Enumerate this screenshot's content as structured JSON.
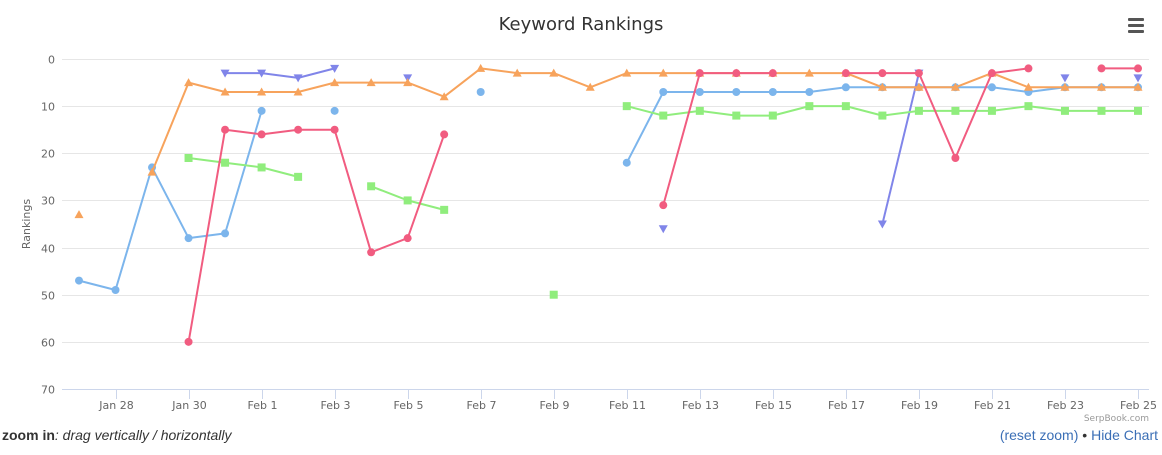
{
  "chart_data": {
    "type": "line",
    "title": "Keyword Rankings",
    "ylabel": "Rankings",
    "xlabel": "",
    "y_reversed": true,
    "ylim": [
      0,
      70
    ],
    "y_ticks": [
      0,
      10,
      20,
      30,
      40,
      50,
      60,
      70
    ],
    "x_range": [
      "2015-01-27",
      "2015-02-25"
    ],
    "x_ticks": [
      {
        "date": "2015-01-28",
        "label": "Jan 28"
      },
      {
        "date": "2015-01-30",
        "label": "Jan 30"
      },
      {
        "date": "2015-02-01",
        "label": "Feb 1"
      },
      {
        "date": "2015-02-03",
        "label": "Feb 3"
      },
      {
        "date": "2015-02-05",
        "label": "Feb 5"
      },
      {
        "date": "2015-02-07",
        "label": "Feb 7"
      },
      {
        "date": "2015-02-09",
        "label": "Feb 9"
      },
      {
        "date": "2015-02-11",
        "label": "Feb 11"
      },
      {
        "date": "2015-02-13",
        "label": "Feb 13"
      },
      {
        "date": "2015-02-15",
        "label": "Feb 15"
      },
      {
        "date": "2015-02-17",
        "label": "Feb 17"
      },
      {
        "date": "2015-02-19",
        "label": "Feb 19"
      },
      {
        "date": "2015-02-21",
        "label": "Feb 21"
      },
      {
        "date": "2015-02-23",
        "label": "Feb 23"
      },
      {
        "date": "2015-02-25",
        "label": "Feb 25"
      }
    ],
    "grid": true,
    "series": [
      {
        "color": "#7cb5ec",
        "marker": "circle",
        "points": [
          [
            "2015-01-27",
            47
          ],
          [
            "2015-01-28",
            49
          ],
          [
            "2015-01-29",
            23
          ],
          [
            "2015-01-30",
            38
          ],
          [
            "2015-01-31",
            37
          ],
          [
            "2015-02-01",
            11
          ],
          [
            "2015-02-02",
            null
          ],
          [
            "2015-02-03",
            11
          ],
          [
            "2015-02-04",
            null
          ],
          [
            "2015-02-07",
            7
          ],
          [
            "2015-02-08",
            null
          ],
          [
            "2015-02-11",
            22
          ],
          [
            "2015-02-12",
            7
          ],
          [
            "2015-02-13",
            7
          ],
          [
            "2015-02-14",
            7
          ],
          [
            "2015-02-15",
            7
          ],
          [
            "2015-02-16",
            7
          ],
          [
            "2015-02-17",
            6
          ],
          [
            "2015-02-18",
            6
          ],
          [
            "2015-02-19",
            6
          ],
          [
            "2015-02-20",
            6
          ],
          [
            "2015-02-21",
            6
          ],
          [
            "2015-02-22",
            7
          ],
          [
            "2015-02-23",
            6
          ],
          [
            "2015-02-24",
            6
          ],
          [
            "2015-02-25",
            6
          ]
        ]
      },
      {
        "color": "#8085e9",
        "marker": "triangle-down",
        "points": [
          [
            "2015-01-31",
            3
          ],
          [
            "2015-02-01",
            3
          ],
          [
            "2015-02-02",
            4
          ],
          [
            "2015-02-03",
            2
          ],
          [
            "2015-02-04",
            null
          ],
          [
            "2015-02-05",
            4
          ],
          [
            "2015-02-06",
            null
          ],
          [
            "2015-02-12",
            36
          ],
          [
            "2015-02-13",
            null
          ],
          [
            "2015-02-18",
            35
          ],
          [
            "2015-02-19",
            3
          ],
          [
            "2015-02-20",
            null
          ],
          [
            "2015-02-23",
            4
          ],
          [
            "2015-02-24",
            null
          ],
          [
            "2015-02-25",
            4
          ]
        ]
      },
      {
        "color": "#f7a35c",
        "marker": "triangle",
        "points": [
          [
            "2015-01-27",
            33
          ],
          [
            "2015-01-28",
            null
          ],
          [
            "2015-01-29",
            24
          ],
          [
            "2015-01-30",
            5
          ],
          [
            "2015-01-31",
            7
          ],
          [
            "2015-02-01",
            7
          ],
          [
            "2015-02-02",
            7
          ],
          [
            "2015-02-03",
            5
          ],
          [
            "2015-02-04",
            5
          ],
          [
            "2015-02-05",
            5
          ],
          [
            "2015-02-06",
            8
          ],
          [
            "2015-02-07",
            2
          ],
          [
            "2015-02-08",
            3
          ],
          [
            "2015-02-09",
            3
          ],
          [
            "2015-02-10",
            6
          ],
          [
            "2015-02-11",
            3
          ],
          [
            "2015-02-12",
            3
          ],
          [
            "2015-02-13",
            3
          ],
          [
            "2015-02-14",
            3
          ],
          [
            "2015-02-15",
            3
          ],
          [
            "2015-02-16",
            3
          ],
          [
            "2015-02-17",
            3
          ],
          [
            "2015-02-18",
            6
          ],
          [
            "2015-02-19",
            6
          ],
          [
            "2015-02-20",
            6
          ],
          [
            "2015-02-21",
            3
          ],
          [
            "2015-02-22",
            6
          ],
          [
            "2015-02-23",
            6
          ],
          [
            "2015-02-24",
            6
          ],
          [
            "2015-02-25",
            6
          ]
        ]
      },
      {
        "color": "#90ed7d",
        "marker": "square",
        "points": [
          [
            "2015-01-30",
            21
          ],
          [
            "2015-01-31",
            22
          ],
          [
            "2015-02-01",
            23
          ],
          [
            "2015-02-02",
            25
          ],
          [
            "2015-02-03",
            null
          ],
          [
            "2015-02-04",
            27
          ],
          [
            "2015-02-05",
            30
          ],
          [
            "2015-02-06",
            32
          ],
          [
            "2015-02-07",
            null
          ],
          [
            "2015-02-09",
            50
          ],
          [
            "2015-02-10",
            null
          ],
          [
            "2015-02-11",
            10
          ],
          [
            "2015-02-12",
            12
          ],
          [
            "2015-02-13",
            11
          ],
          [
            "2015-02-14",
            12
          ],
          [
            "2015-02-15",
            12
          ],
          [
            "2015-02-16",
            10
          ],
          [
            "2015-02-17",
            10
          ],
          [
            "2015-02-18",
            12
          ],
          [
            "2015-02-19",
            11
          ],
          [
            "2015-02-20",
            11
          ],
          [
            "2015-02-21",
            11
          ],
          [
            "2015-02-22",
            10
          ],
          [
            "2015-02-23",
            11
          ],
          [
            "2015-02-24",
            11
          ],
          [
            "2015-02-25",
            11
          ]
        ]
      },
      {
        "color": "#f15c80",
        "marker": "circle",
        "points": [
          [
            "2015-01-30",
            60
          ],
          [
            "2015-01-31",
            15
          ],
          [
            "2015-02-01",
            16
          ],
          [
            "2015-02-02",
            15
          ],
          [
            "2015-02-03",
            15
          ],
          [
            "2015-02-04",
            41
          ],
          [
            "2015-02-05",
            38
          ],
          [
            "2015-02-06",
            16
          ],
          [
            "2015-02-07",
            null
          ],
          [
            "2015-02-12",
            31
          ],
          [
            "2015-02-13",
            3
          ],
          [
            "2015-02-14",
            3
          ],
          [
            "2015-02-15",
            3
          ],
          [
            "2015-02-16",
            null
          ],
          [
            "2015-02-17",
            3
          ],
          [
            "2015-02-18",
            3
          ],
          [
            "2015-02-19",
            3
          ],
          [
            "2015-02-20",
            21
          ],
          [
            "2015-02-21",
            3
          ],
          [
            "2015-02-22",
            2
          ],
          [
            "2015-02-23",
            null
          ],
          [
            "2015-02-24",
            2
          ],
          [
            "2015-02-25",
            2
          ]
        ]
      }
    ]
  },
  "credit": "SerpBook.com",
  "footer": {
    "zoom_label": "zoom in",
    "zoom_hint": ": drag vertically / horizontally",
    "reset_zoom": "(reset zoom)",
    "separator": " • ",
    "hide_chart": "Hide Chart"
  },
  "icons": {
    "menu": "hamburger-menu-icon"
  }
}
